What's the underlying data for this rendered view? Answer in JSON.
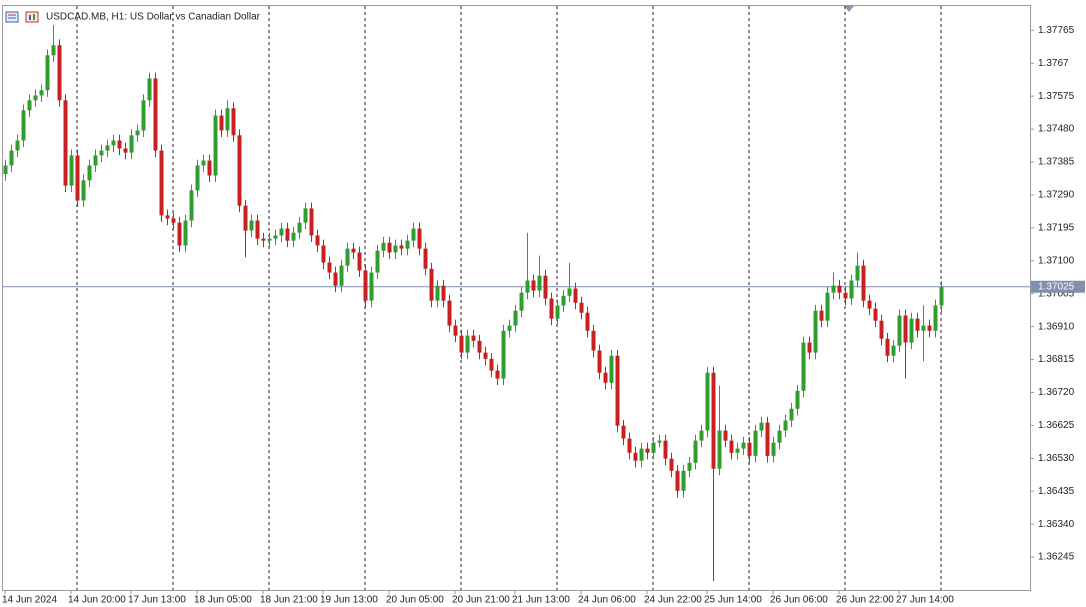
{
  "chart_data": {
    "type": "candlestick",
    "title": "USDCAD.MB, H1:  US Dollar vs Canadian Dollar",
    "up_color": "#2e9e2e",
    "down_color": "#c82020",
    "grid": true,
    "ylim": [
      1.3615,
      1.37838
    ],
    "yticks": [
      1.37765,
      1.3767,
      1.37575,
      {
        "value": 1.3748,
        "label": "1.37480"
      },
      1.37385,
      {
        "value": 1.3729,
        "label": "1.37290"
      },
      1.37195,
      {
        "value": 1.371,
        "label": "1.37100"
      },
      1.37005,
      {
        "value": 1.3691,
        "label": "1.36910"
      },
      1.36815,
      {
        "value": 1.3672,
        "label": "1.36720"
      },
      1.36625,
      {
        "value": 1.3653,
        "label": "1.36530"
      },
      1.36435,
      {
        "value": 1.3634,
        "label": "1.36340"
      },
      1.36245
    ],
    "last_price": 1.37025,
    "categories": [
      "14 Jun 2024",
      null,
      null,
      null,
      null,
      null,
      null,
      null,
      null,
      null,
      null,
      "14 Jun 20:00",
      null,
      null,
      null,
      null,
      null,
      null,
      null,
      null,
      null,
      "17 Jun 13:00",
      null,
      null,
      null,
      null,
      null,
      null,
      null,
      null,
      null,
      null,
      "18 Jun 05:00",
      null,
      null,
      null,
      null,
      null,
      null,
      null,
      null,
      null,
      null,
      "18 Jun 21:00",
      null,
      null,
      null,
      null,
      null,
      null,
      null,
      null,
      null,
      "19 Jun 13:00",
      null,
      null,
      null,
      null,
      null,
      null,
      null,
      null,
      null,
      null,
      "20 Jun 05:00",
      null,
      null,
      null,
      null,
      null,
      null,
      null,
      null,
      null,
      null,
      "20 Jun 21:00",
      null,
      null,
      null,
      null,
      null,
      null,
      null,
      null,
      null,
      "21 Jun 13:00",
      null,
      null,
      null,
      null,
      null,
      null,
      null,
      null,
      null,
      null,
      "24 Jun 06:00",
      null,
      null,
      null,
      null,
      null,
      null,
      null,
      null,
      null,
      null,
      "24 Jun 22:00",
      null,
      null,
      null,
      null,
      null,
      null,
      null,
      null,
      null,
      "25 Jun 14:00",
      null,
      null,
      null,
      null,
      null,
      null,
      null,
      null,
      null,
      null,
      "26 Jun 06:00",
      null,
      null,
      null,
      null,
      null,
      null,
      null,
      null,
      null,
      null,
      "26 Jun 22:00",
      null,
      null,
      null,
      null,
      null,
      null,
      null,
      null,
      null,
      "27 Jun 14:00",
      null,
      null,
      null,
      null,
      null,
      null,
      null
    ],
    "open": [
      1.3735,
      1.37375,
      1.37418,
      1.37447,
      1.37534,
      1.37563,
      1.37577,
      1.37592,
      1.37693,
      1.37722,
      1.37563,
      1.37317,
      1.37404,
      1.37274,
      1.37332,
      1.37375,
      1.37404,
      1.37418,
      1.37433,
      1.37447,
      1.37424,
      1.37412,
      1.37462,
      1.37476,
      1.37563,
      1.37626,
      1.37418,
      1.37231,
      1.37222,
      1.3721,
      1.37144,
      1.37216,
      1.37303,
      1.37375,
      1.37389,
      1.37346,
      1.37519,
      1.37476,
      1.3754,
      1.37462,
      1.37259,
      1.37187,
      1.37216,
      1.37164,
      1.37158,
      1.37164,
      1.37173,
      1.37193,
      1.37158,
      1.37181,
      1.3721,
      1.37251,
      1.37173,
      1.37144,
      1.37095,
      1.37066,
      1.37028,
      1.37086,
      1.37135,
      1.37124,
      1.37072,
      1.36985,
      1.37066,
      1.37129,
      1.37152,
      1.37124,
      1.37144,
      1.37135,
      1.37158,
      1.37193,
      1.37135,
      1.37077,
      1.36985,
      1.37028,
      1.36985,
      1.36913,
      1.36884,
      1.36835,
      1.36884,
      1.36869,
      1.36835,
      1.36817,
      1.36783,
      1.3676,
      1.36898,
      1.36913,
      1.36956,
      1.37008,
      1.37043,
      1.37014,
      1.37057,
      1.36991,
      1.36933,
      1.36971,
      1.36999,
      1.3702,
      1.36979,
      1.3695,
      1.36898,
      1.36841,
      1.36777,
      1.36748,
      1.36826,
      1.36624,
      1.36587,
      1.36546,
      1.36523,
      1.36558,
      1.36546,
      1.36575,
      1.36581,
      1.36529,
      1.36494,
      1.36436,
      1.36494,
      1.36517,
      1.36581,
      1.3661,
      1.36777,
      1.365,
      1.3661,
      1.36581,
      1.36546,
      1.36558,
      1.36575,
      1.36537,
      1.3661,
      1.36633,
      1.36537,
      1.36575,
      1.3661,
      1.36639,
      1.36673,
      1.36725,
      1.36864,
      1.36835,
      1.36956,
      1.36927,
      1.37008,
      1.37028,
      1.37008,
      1.36991,
      1.37043,
      1.37086,
      1.36985,
      1.36962,
      1.36927,
      1.36875,
      1.36826,
      1.36855,
      1.36942,
      1.36864,
      1.36933,
      1.36898,
      1.36913,
      1.36898,
      1.36971
    ],
    "high": [
      1.37392,
      1.37435,
      1.37464,
      1.37551,
      1.3758,
      1.37594,
      1.37609,
      1.3771,
      1.3778,
      1.37739,
      1.3758,
      1.37421,
      1.37421,
      1.37349,
      1.37392,
      1.37421,
      1.37435,
      1.3745,
      1.37464,
      1.37464,
      1.37441,
      1.37479,
      1.37493,
      1.3758,
      1.37643,
      1.37643,
      1.37435,
      1.37248,
      1.37239,
      1.37227,
      1.37233,
      1.3732,
      1.37392,
      1.37406,
      1.37406,
      1.37536,
      1.37536,
      1.37563,
      1.37557,
      1.37479,
      1.37276,
      1.37233,
      1.37233,
      1.37181,
      1.37181,
      1.3719,
      1.3721,
      1.3721,
      1.37198,
      1.37227,
      1.37268,
      1.37268,
      1.3719,
      1.37161,
      1.37112,
      1.37083,
      1.37103,
      1.37152,
      1.37152,
      1.37141,
      1.37089,
      1.37083,
      1.37146,
      1.37169,
      1.37169,
      1.37161,
      1.37161,
      1.37175,
      1.3721,
      1.3721,
      1.37152,
      1.37094,
      1.37045,
      1.37045,
      1.37002,
      1.3693,
      1.36901,
      1.36901,
      1.36901,
      1.36886,
      1.36852,
      1.36834,
      1.368,
      1.36915,
      1.3693,
      1.36973,
      1.37025,
      1.37181,
      1.3706,
      1.37115,
      1.37074,
      1.37008,
      1.36988,
      1.37016,
      1.37094,
      1.37037,
      1.36996,
      1.36967,
      1.36915,
      1.36858,
      1.36794,
      1.36843,
      1.36843,
      1.36641,
      1.36604,
      1.36563,
      1.36575,
      1.36575,
      1.36592,
      1.36598,
      1.36598,
      1.36546,
      1.36511,
      1.36511,
      1.36534,
      1.36598,
      1.36627,
      1.36794,
      1.36794,
      1.3674,
      1.36627,
      1.36598,
      1.36575,
      1.36592,
      1.36592,
      1.36627,
      1.3665,
      1.3665,
      1.36592,
      1.36627,
      1.36656,
      1.3669,
      1.36742,
      1.36881,
      1.36881,
      1.36973,
      1.36973,
      1.37025,
      1.37066,
      1.37045,
      1.37025,
      1.3706,
      1.37124,
      1.37103,
      1.37002,
      1.36979,
      1.36944,
      1.36892,
      1.36872,
      1.36959,
      1.36959,
      1.3695,
      1.3695,
      1.36972,
      1.3693,
      1.36988,
      1.37042
    ],
    "low": [
      1.37331,
      1.37356,
      1.37399,
      1.37428,
      1.37515,
      1.37544,
      1.37558,
      1.37573,
      1.37674,
      1.37544,
      1.37298,
      1.37298,
      1.37255,
      1.37255,
      1.37313,
      1.37356,
      1.37385,
      1.37399,
      1.37414,
      1.37405,
      1.37393,
      1.37393,
      1.37443,
      1.37457,
      1.37544,
      1.37399,
      1.37212,
      1.37203,
      1.37191,
      1.37125,
      1.37125,
      1.37197,
      1.37284,
      1.37356,
      1.37327,
      1.37327,
      1.37457,
      1.37457,
      1.37443,
      1.3724,
      1.3711,
      1.37168,
      1.37145,
      1.37139,
      1.37139,
      1.37145,
      1.37154,
      1.37139,
      1.37139,
      1.37162,
      1.37191,
      1.37154,
      1.37125,
      1.37076,
      1.37047,
      1.37009,
      1.37009,
      1.37067,
      1.37105,
      1.37053,
      1.36966,
      1.36966,
      1.37047,
      1.3711,
      1.37105,
      1.37105,
      1.37116,
      1.37116,
      1.37139,
      1.37116,
      1.37058,
      1.36966,
      1.36966,
      1.36966,
      1.36894,
      1.36865,
      1.36816,
      1.36816,
      1.3685,
      1.36816,
      1.36798,
      1.36764,
      1.36741,
      1.36741,
      1.36879,
      1.36894,
      1.36937,
      1.36989,
      1.36995,
      1.36995,
      1.36972,
      1.36914,
      1.36914,
      1.36952,
      1.3698,
      1.3696,
      1.36931,
      1.36879,
      1.36822,
      1.36758,
      1.36729,
      1.36729,
      1.36605,
      1.36568,
      1.36527,
      1.36504,
      1.36504,
      1.36527,
      1.36527,
      1.36562,
      1.3651,
      1.36475,
      1.36417,
      1.36417,
      1.36475,
      1.36498,
      1.36562,
      1.36591,
      1.36176,
      1.36481,
      1.36562,
      1.36527,
      1.36527,
      1.36539,
      1.36518,
      1.36518,
      1.36591,
      1.36518,
      1.36518,
      1.36556,
      1.36591,
      1.3662,
      1.36654,
      1.36706,
      1.36816,
      1.36816,
      1.36908,
      1.36908,
      1.36989,
      1.36989,
      1.36972,
      1.36972,
      1.37024,
      1.36966,
      1.36943,
      1.36908,
      1.36856,
      1.36807,
      1.36807,
      1.36836,
      1.3676,
      1.36845,
      1.36879,
      1.3681,
      1.36879,
      1.36879,
      1.36952
    ],
    "close": [
      1.37375,
      1.37418,
      1.37447,
      1.37534,
      1.37563,
      1.37577,
      1.37592,
      1.37693,
      1.37722,
      1.37563,
      1.37317,
      1.37404,
      1.37274,
      1.37332,
      1.37375,
      1.37404,
      1.37418,
      1.37433,
      1.37447,
      1.37424,
      1.37412,
      1.37462,
      1.37476,
      1.37563,
      1.37626,
      1.37418,
      1.37231,
      1.37222,
      1.3721,
      1.37144,
      1.37216,
      1.37303,
      1.37375,
      1.37389,
      1.37346,
      1.37519,
      1.37476,
      1.3754,
      1.37462,
      1.37259,
      1.37187,
      1.37216,
      1.37164,
      1.37158,
      1.37164,
      1.37173,
      1.37193,
      1.37158,
      1.37181,
      1.3721,
      1.37251,
      1.37173,
      1.37144,
      1.37095,
      1.37066,
      1.37028,
      1.37086,
      1.37135,
      1.37124,
      1.37072,
      1.36985,
      1.37066,
      1.37129,
      1.37152,
      1.37124,
      1.37144,
      1.37135,
      1.37158,
      1.37193,
      1.37135,
      1.37077,
      1.36985,
      1.37028,
      1.36985,
      1.36913,
      1.36884,
      1.36835,
      1.36884,
      1.36869,
      1.36835,
      1.36817,
      1.36783,
      1.3676,
      1.36898,
      1.36913,
      1.36956,
      1.37008,
      1.37043,
      1.37014,
      1.37057,
      1.36991,
      1.36933,
      1.36971,
      1.36999,
      1.3702,
      1.36979,
      1.3695,
      1.36898,
      1.36841,
      1.36777,
      1.36748,
      1.36826,
      1.36624,
      1.36587,
      1.36546,
      1.36523,
      1.36558,
      1.36546,
      1.36575,
      1.36581,
      1.36529,
      1.36494,
      1.36436,
      1.36494,
      1.36517,
      1.36581,
      1.3661,
      1.36777,
      1.365,
      1.3661,
      1.36581,
      1.36546,
      1.36558,
      1.36575,
      1.36537,
      1.3661,
      1.36633,
      1.36537,
      1.36575,
      1.3661,
      1.36639,
      1.36673,
      1.36725,
      1.36864,
      1.36835,
      1.36956,
      1.36927,
      1.37008,
      1.37028,
      1.37008,
      1.36991,
      1.37043,
      1.37086,
      1.36985,
      1.36962,
      1.36927,
      1.36875,
      1.36826,
      1.36855,
      1.36942,
      1.36864,
      1.36933,
      1.36898,
      1.36913,
      1.36898,
      1.36971,
      1.37025
    ]
  }
}
